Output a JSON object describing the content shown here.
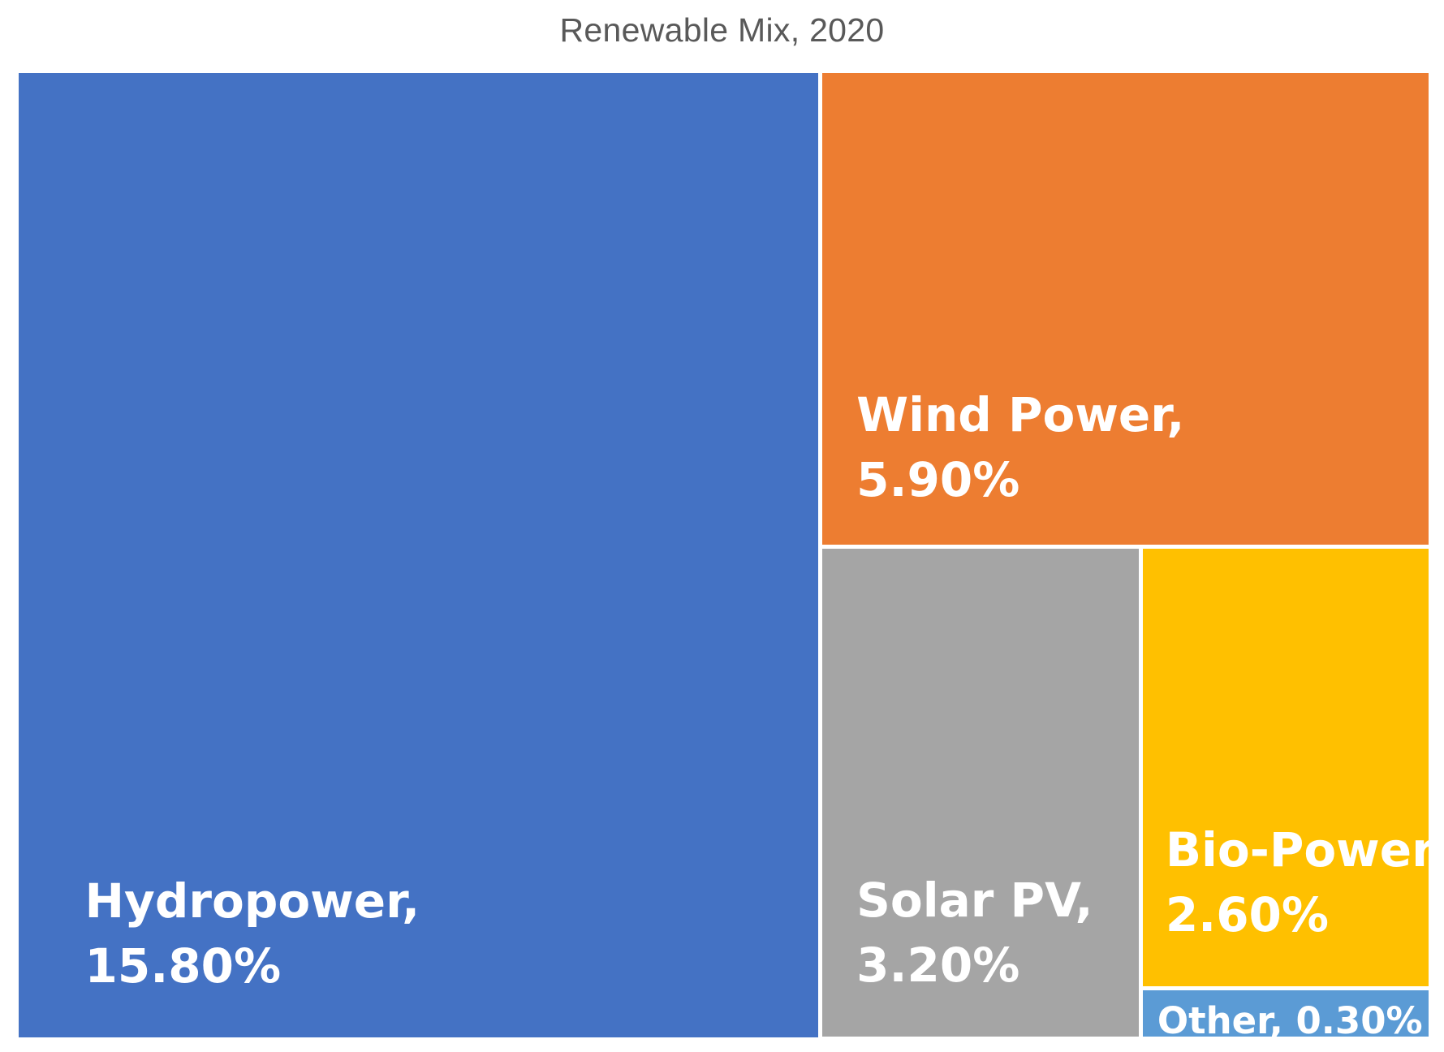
{
  "chart_data": {
    "type": "treemap",
    "title": "Renewable Mix, 2020",
    "items": [
      {
        "name": "Hydropower",
        "value": 15.8,
        "label_line1": "Hydropower,",
        "label_line2": "15.80%",
        "color": "#4472C4"
      },
      {
        "name": "Wind Power",
        "value": 5.9,
        "label_line1": "Wind Power,",
        "label_line2": "5.90%",
        "color": "#ED7D31"
      },
      {
        "name": "Solar PV",
        "value": 3.2,
        "label_line1": "Solar PV,",
        "label_line2": "3.20%",
        "color": "#A5A5A5"
      },
      {
        "name": "Bio-Power",
        "value": 2.6,
        "label_line1": "Bio-Power,",
        "label_line2": "2.60%",
        "color": "#FFC000"
      },
      {
        "name": "Other",
        "value": 0.3,
        "label_line1": "Other, 0.30%",
        "label_line2": "",
        "color": "#5B9BD5"
      }
    ]
  }
}
